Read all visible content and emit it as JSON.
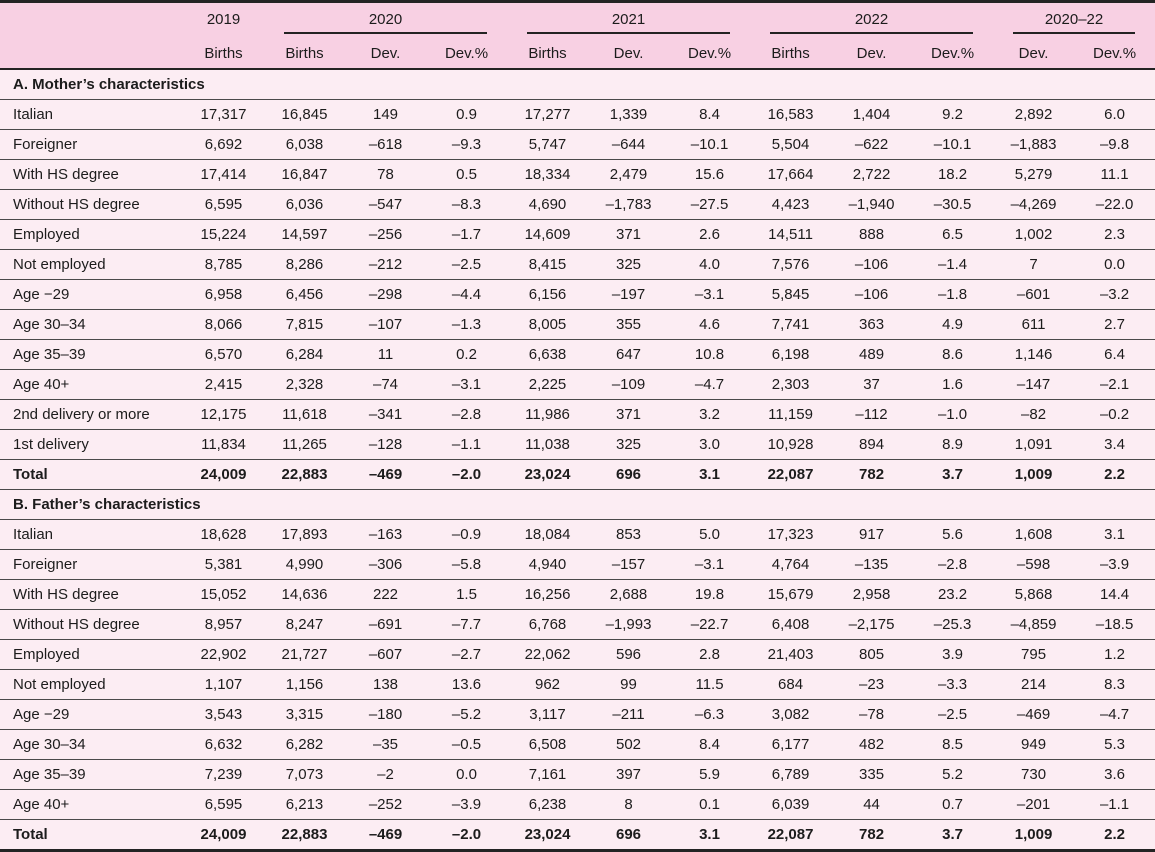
{
  "colors": {
    "header_bg": "#f8d0e3",
    "row_bg": "#fcedf3",
    "row_line": "#4a4a4a",
    "border_dark": "#232323",
    "text": "#1c1c1c"
  },
  "chart_data": {
    "type": "table",
    "header": {
      "corner_label": "",
      "groups": [
        {
          "label": "2019",
          "columns": [
            "Births"
          ],
          "underline": false
        },
        {
          "label": "2020",
          "columns": [
            "Births",
            "Dev.",
            "Dev.%"
          ],
          "underline": true
        },
        {
          "label": "2021",
          "columns": [
            "Births",
            "Dev.",
            "Dev.%"
          ],
          "underline": true
        },
        {
          "label": "2022",
          "columns": [
            "Births",
            "Dev.",
            "Dev.%"
          ],
          "underline": true
        },
        {
          "label": "2020–22",
          "columns": [
            "Dev.",
            "Dev.%"
          ],
          "underline": true
        }
      ]
    },
    "sections": [
      {
        "title": "A. Mother’s characteristics",
        "rows": [
          {
            "label": "Italian",
            "bold": false,
            "values": [
              "17,317",
              "16,845",
              "149",
              "0.9",
              "17,277",
              "1,339",
              "8.4",
              "16,583",
              "1,404",
              "9.2",
              "2,892",
              "6.0"
            ]
          },
          {
            "label": "Foreigner",
            "bold": false,
            "values": [
              "6,692",
              "6,038",
              "–618",
              "–9.3",
              "5,747",
              "–644",
              "–10.1",
              "5,504",
              "–622",
              "–10.1",
              "–1,883",
              "–9.8"
            ]
          },
          {
            "label": "With HS degree",
            "bold": false,
            "values": [
              "17,414",
              "16,847",
              "78",
              "0.5",
              "18,334",
              "2,479",
              "15.6",
              "17,664",
              "2,722",
              "18.2",
              "5,279",
              "11.1"
            ]
          },
          {
            "label": "Without HS degree",
            "bold": false,
            "values": [
              "6,595",
              "6,036",
              "–547",
              "–8.3",
              "4,690",
              "–1,783",
              "–27.5",
              "4,423",
              "–1,940",
              "–30.5",
              "–4,269",
              "–22.0"
            ]
          },
          {
            "label": "Employed",
            "bold": false,
            "values": [
              "15,224",
              "14,597",
              "–256",
              "–1.7",
              "14,609",
              "371",
              "2.6",
              "14,511",
              "888",
              "6.5",
              "1,002",
              "2.3"
            ]
          },
          {
            "label": "Not employed",
            "bold": false,
            "values": [
              "8,785",
              "8,286",
              "–212",
              "–2.5",
              "8,415",
              "325",
              "4.0",
              "7,576",
              "–106",
              "–1.4",
              "7",
              "0.0"
            ]
          },
          {
            "label": "Age −29",
            "bold": false,
            "values": [
              "6,958",
              "6,456",
              "–298",
              "–4.4",
              "6,156",
              "–197",
              "–3.1",
              "5,845",
              "–106",
              "–1.8",
              "–601",
              "–3.2"
            ]
          },
          {
            "label": "Age 30–34",
            "bold": false,
            "values": [
              "8,066",
              "7,815",
              "–107",
              "–1.3",
              "8,005",
              "355",
              "4.6",
              "7,741",
              "363",
              "4.9",
              "611",
              "2.7"
            ]
          },
          {
            "label": "Age 35–39",
            "bold": false,
            "values": [
              "6,570",
              "6,284",
              "11",
              "0.2",
              "6,638",
              "647",
              "10.8",
              "6,198",
              "489",
              "8.6",
              "1,146",
              "6.4"
            ]
          },
          {
            "label": "Age 40+",
            "bold": false,
            "values": [
              "2,415",
              "2,328",
              "–74",
              "–3.1",
              "2,225",
              "–109",
              "–4.7",
              "2,303",
              "37",
              "1.6",
              "–147",
              "–2.1"
            ]
          },
          {
            "label": "2nd delivery or more",
            "bold": false,
            "values": [
              "12,175",
              "11,618",
              "–341",
              "–2.8",
              "11,986",
              "371",
              "3.2",
              "11,159",
              "–112",
              "–1.0",
              "–82",
              "–0.2"
            ]
          },
          {
            "label": "1st delivery",
            "bold": false,
            "values": [
              "11,834",
              "11,265",
              "–128",
              "–1.1",
              "11,038",
              "325",
              "3.0",
              "10,928",
              "894",
              "8.9",
              "1,091",
              "3.4"
            ]
          },
          {
            "label": "Total",
            "bold": true,
            "values": [
              "24,009",
              "22,883",
              "–469",
              "–2.0",
              "23,024",
              "696",
              "3.1",
              "22,087",
              "782",
              "3.7",
              "1,009",
              "2.2"
            ]
          }
        ]
      },
      {
        "title": "B. Father’s characteristics",
        "rows": [
          {
            "label": "Italian",
            "bold": false,
            "values": [
              "18,628",
              "17,893",
              "–163",
              "–0.9",
              "18,084",
              "853",
              "5.0",
              "17,323",
              "917",
              "5.6",
              "1,608",
              "3.1"
            ]
          },
          {
            "label": "Foreigner",
            "bold": false,
            "values": [
              "5,381",
              "4,990",
              "–306",
              "–5.8",
              "4,940",
              "–157",
              "–3.1",
              "4,764",
              "–135",
              "–2.8",
              "–598",
              "–3.9"
            ]
          },
          {
            "label": "With HS degree",
            "bold": false,
            "values": [
              "15,052",
              "14,636",
              "222",
              "1.5",
              "16,256",
              "2,688",
              "19.8",
              "15,679",
              "2,958",
              "23.2",
              "5,868",
              "14.4"
            ]
          },
          {
            "label": "Without HS degree",
            "bold": false,
            "values": [
              "8,957",
              "8,247",
              "–691",
              "–7.7",
              "6,768",
              "–1,993",
              "–22.7",
              "6,408",
              "–2,175",
              "–25.3",
              "–4,859",
              "–18.5"
            ]
          },
          {
            "label": "Employed",
            "bold": false,
            "values": [
              "22,902",
              "21,727",
              "–607",
              "–2.7",
              "22,062",
              "596",
              "2.8",
              "21,403",
              "805",
              "3.9",
              "795",
              "1.2"
            ]
          },
          {
            "label": "Not employed",
            "bold": false,
            "values": [
              "1,107",
              "1,156",
              "138",
              "13.6",
              "962",
              "99",
              "11.5",
              "684",
              "–23",
              "–3.3",
              "214",
              "8.3"
            ]
          },
          {
            "label": "Age −29",
            "bold": false,
            "values": [
              "3,543",
              "3,315",
              "–180",
              "–5.2",
              "3,117",
              "–211",
              "–6.3",
              "3,082",
              "–78",
              "–2.5",
              "–469",
              "–4.7"
            ]
          },
          {
            "label": "Age 30–34",
            "bold": false,
            "values": [
              "6,632",
              "6,282",
              "–35",
              "–0.5",
              "6,508",
              "502",
              "8.4",
              "6,177",
              "482",
              "8.5",
              "949",
              "5.3"
            ]
          },
          {
            "label": "Age 35–39",
            "bold": false,
            "values": [
              "7,239",
              "7,073",
              "–2",
              "0.0",
              "7,161",
              "397",
              "5.9",
              "6,789",
              "335",
              "5.2",
              "730",
              "3.6"
            ]
          },
          {
            "label": "Age 40+",
            "bold": false,
            "values": [
              "6,595",
              "6,213",
              "–252",
              "–3.9",
              "6,238",
              "8",
              "0.1",
              "6,039",
              "44",
              "0.7",
              "–201",
              "–1.1"
            ]
          },
          {
            "label": "Total",
            "bold": true,
            "values": [
              "24,009",
              "22,883",
              "–469",
              "–2.0",
              "23,024",
              "696",
              "3.1",
              "22,087",
              "782",
              "3.7",
              "1,009",
              "2.2"
            ]
          }
        ]
      }
    ]
  }
}
